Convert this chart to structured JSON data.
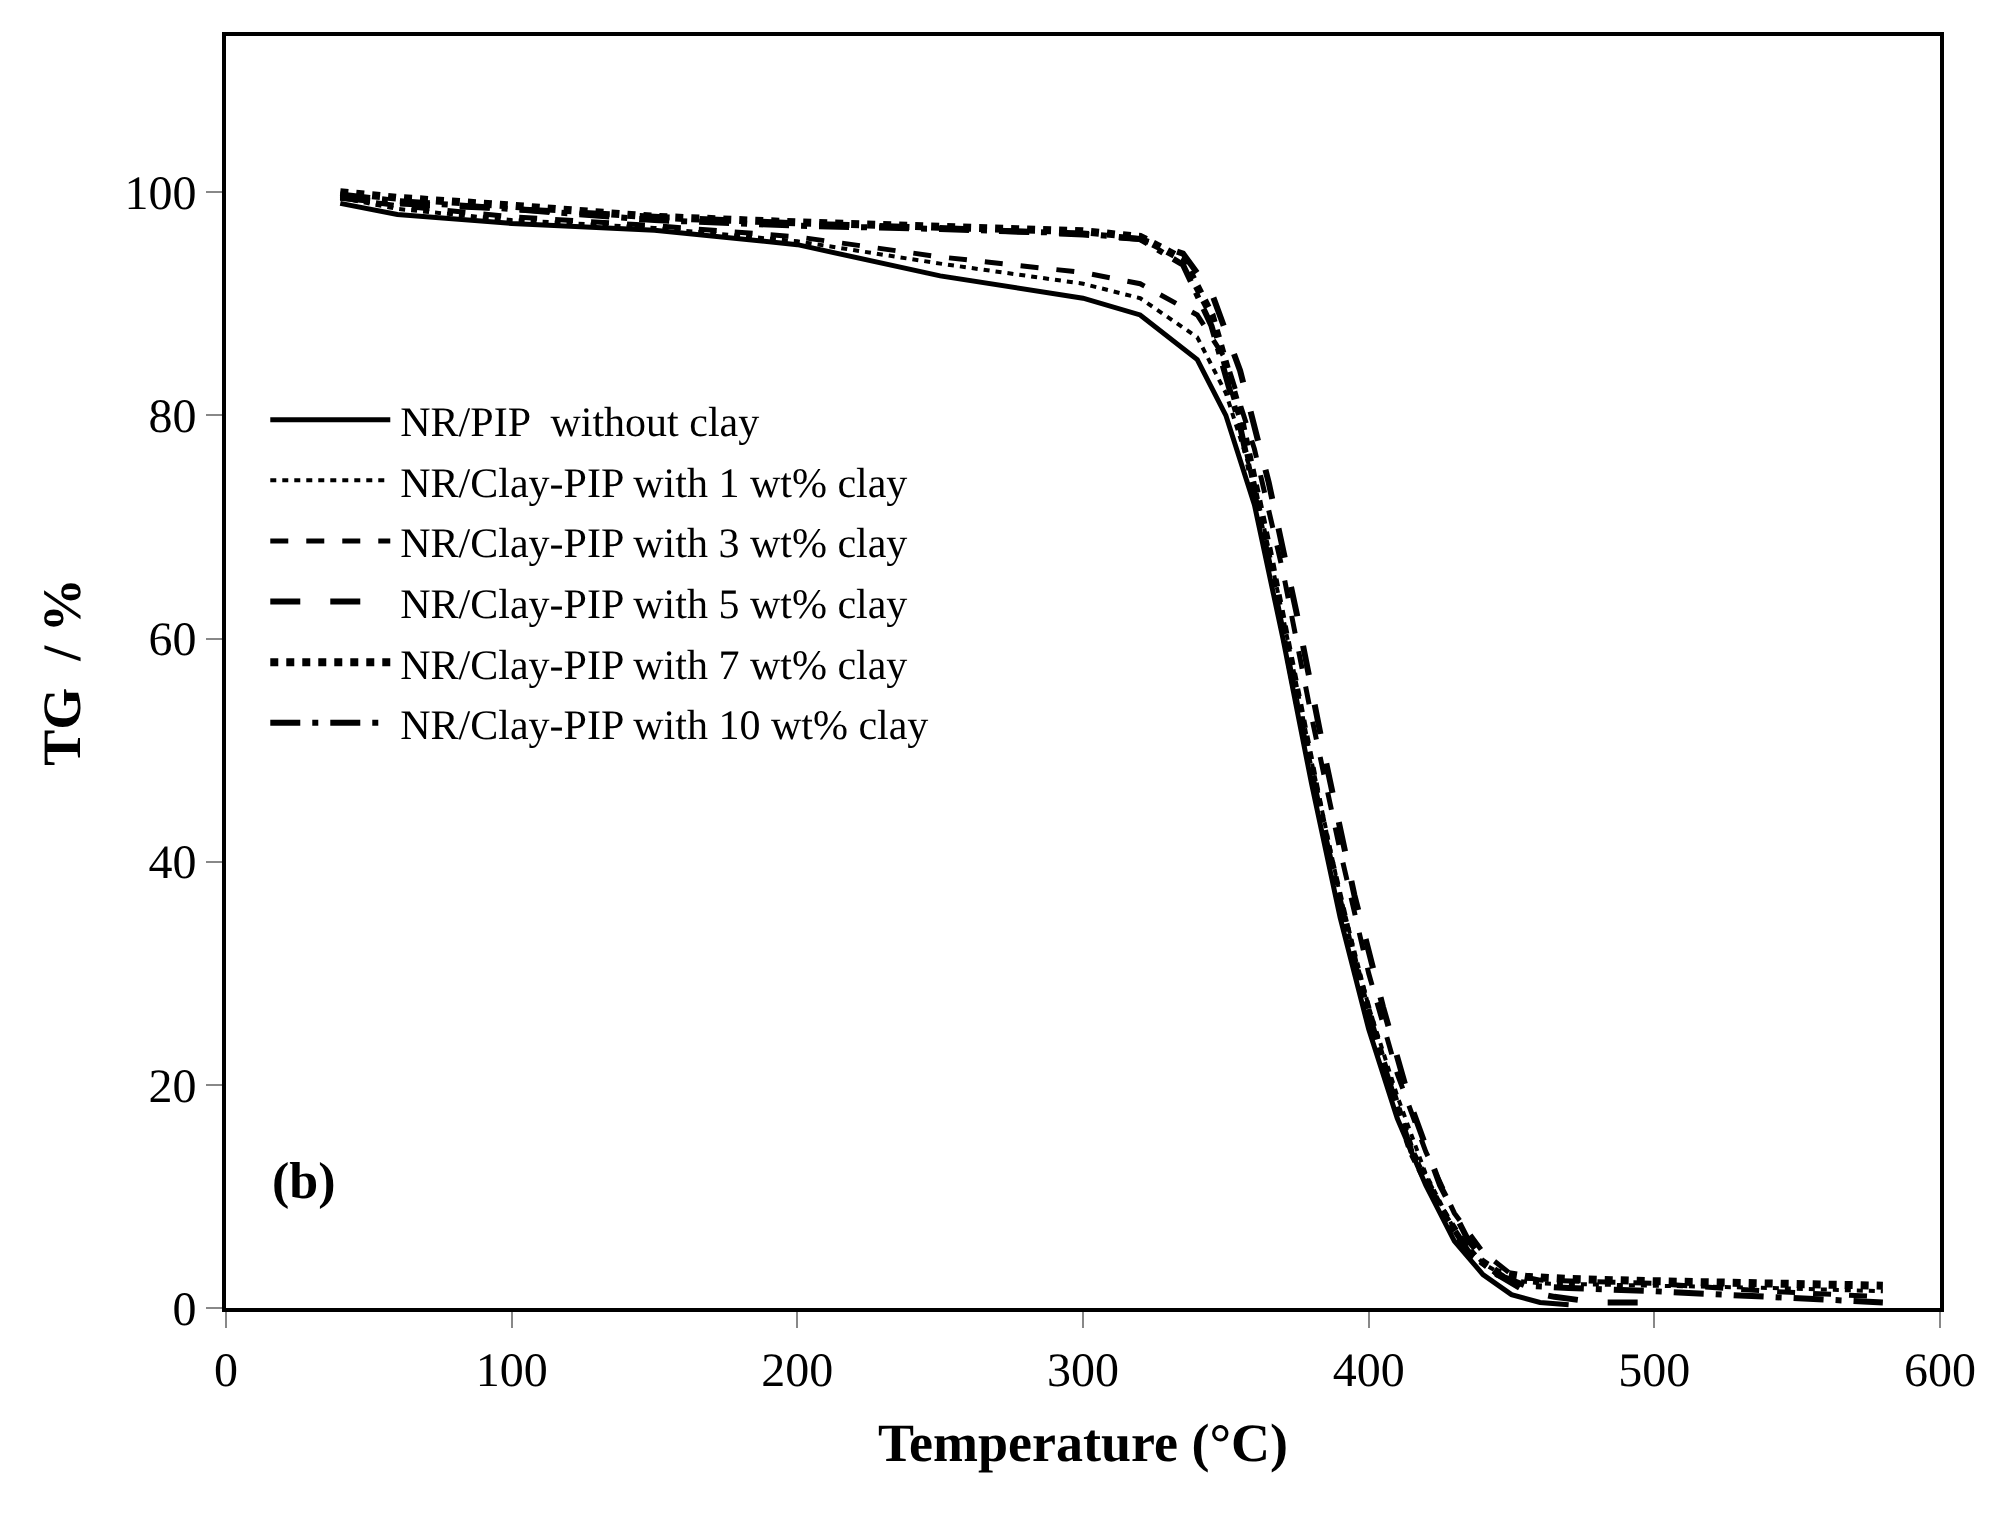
{
  "chart_data": {
    "type": "line",
    "xlabel": "Temperature (°C)",
    "ylabel": "TG  / %",
    "xlim": [
      0,
      600
    ],
    "xticks": [
      0,
      100,
      200,
      300,
      400,
      500,
      600
    ],
    "ylim": [
      0,
      114
    ],
    "yticks": [
      0,
      20,
      40,
      60,
      80,
      100
    ],
    "grid": false,
    "legend": "left",
    "marker": "none",
    "annotations": [
      "(b)"
    ],
    "series": [
      {
        "name": "NR/PIP  without clay",
        "color": "#000000",
        "line_style": "solid",
        "x": [
          40,
          60,
          100,
          150,
          200,
          250,
          300,
          320,
          340,
          350,
          360,
          370,
          380,
          390,
          400,
          410,
          420,
          430,
          440,
          450,
          460,
          470
        ],
        "values": [
          99,
          98,
          97.2,
          96.6,
          95.3,
          92.5,
          90.5,
          89,
          85,
          80,
          72,
          60,
          47,
          35,
          25,
          17,
          11,
          6,
          3,
          1.2,
          0.5,
          0.3
        ]
      },
      {
        "name": "NR/Clay-PIP with 1 wt% clay",
        "color": "#000000",
        "line_style": "dotted",
        "x": [
          40,
          60,
          100,
          150,
          200,
          250,
          300,
          320,
          340,
          350,
          360,
          370,
          380,
          390,
          400,
          410,
          420,
          430,
          440,
          450,
          460,
          500,
          540,
          580
        ],
        "values": [
          99.5,
          98.5,
          97.5,
          96.8,
          95.6,
          93.6,
          91.8,
          90.5,
          87,
          82,
          74,
          62,
          49,
          37,
          27,
          19,
          12,
          7,
          4,
          2.5,
          2.2,
          2,
          1.8,
          1.5
        ]
      },
      {
        "name": "NR/Clay-PIP with 3 wt% clay",
        "color": "#000000",
        "line_style": "dashed",
        "x": [
          40,
          60,
          100,
          150,
          200,
          250,
          300,
          320,
          340,
          350,
          360,
          370,
          380,
          390,
          400,
          410,
          420,
          430,
          440,
          450,
          460,
          500,
          540,
          580
        ],
        "values": [
          99.5,
          98.8,
          97.8,
          97,
          96,
          94.2,
          92.8,
          91.8,
          89,
          85,
          77,
          66,
          53,
          41,
          30,
          21,
          14,
          8.5,
          5,
          3,
          2.5,
          2.2,
          1.5,
          1
        ]
      },
      {
        "name": "NR/Clay-PIP with 5 wt% clay",
        "color": "#000000",
        "line_style": "dashed",
        "x": [
          40,
          60,
          100,
          150,
          200,
          250,
          300,
          320,
          335,
          345,
          355,
          365,
          375,
          385,
          395,
          405,
          415,
          425,
          435,
          445,
          455,
          465,
          480,
          500
        ],
        "values": [
          99.5,
          99,
          98.5,
          97.8,
          97.2,
          96.8,
          96.2,
          95.8,
          94.5,
          91,
          84,
          74,
          62,
          49,
          37,
          27,
          18,
          11,
          6,
          3,
          1.5,
          1,
          0.5,
          0.5
        ]
      },
      {
        "name": "NR/Clay-PIP with 7 wt% clay",
        "color": "#000000",
        "line_style": "dotted",
        "x": [
          40,
          60,
          100,
          150,
          200,
          250,
          300,
          320,
          335,
          345,
          355,
          365,
          375,
          385,
          395,
          405,
          415,
          425,
          435,
          445,
          455,
          470,
          500,
          540,
          580
        ],
        "values": [
          100,
          99.5,
          98.8,
          97.8,
          97.3,
          96.9,
          96.5,
          96,
          94,
          89,
          80,
          68,
          55,
          42,
          31,
          22,
          14,
          9,
          5,
          3.2,
          2.8,
          2.6,
          2.4,
          2.2,
          2
        ]
      },
      {
        "name": "NR/Clay-PIP with 10 wt% clay",
        "color": "#000000",
        "line_style": "dashed",
        "x": [
          40,
          60,
          100,
          150,
          200,
          250,
          300,
          320,
          335,
          345,
          355,
          365,
          375,
          385,
          395,
          405,
          415,
          425,
          435,
          445,
          455,
          470,
          500,
          540,
          580
        ],
        "values": [
          99.8,
          99.2,
          98.5,
          97.5,
          97,
          96.7,
          96.3,
          95.8,
          93.5,
          88,
          79,
          67,
          54,
          42,
          31,
          22,
          14,
          9,
          5,
          3,
          2,
          1.8,
          1.5,
          1,
          0.5
        ]
      }
    ]
  }
}
